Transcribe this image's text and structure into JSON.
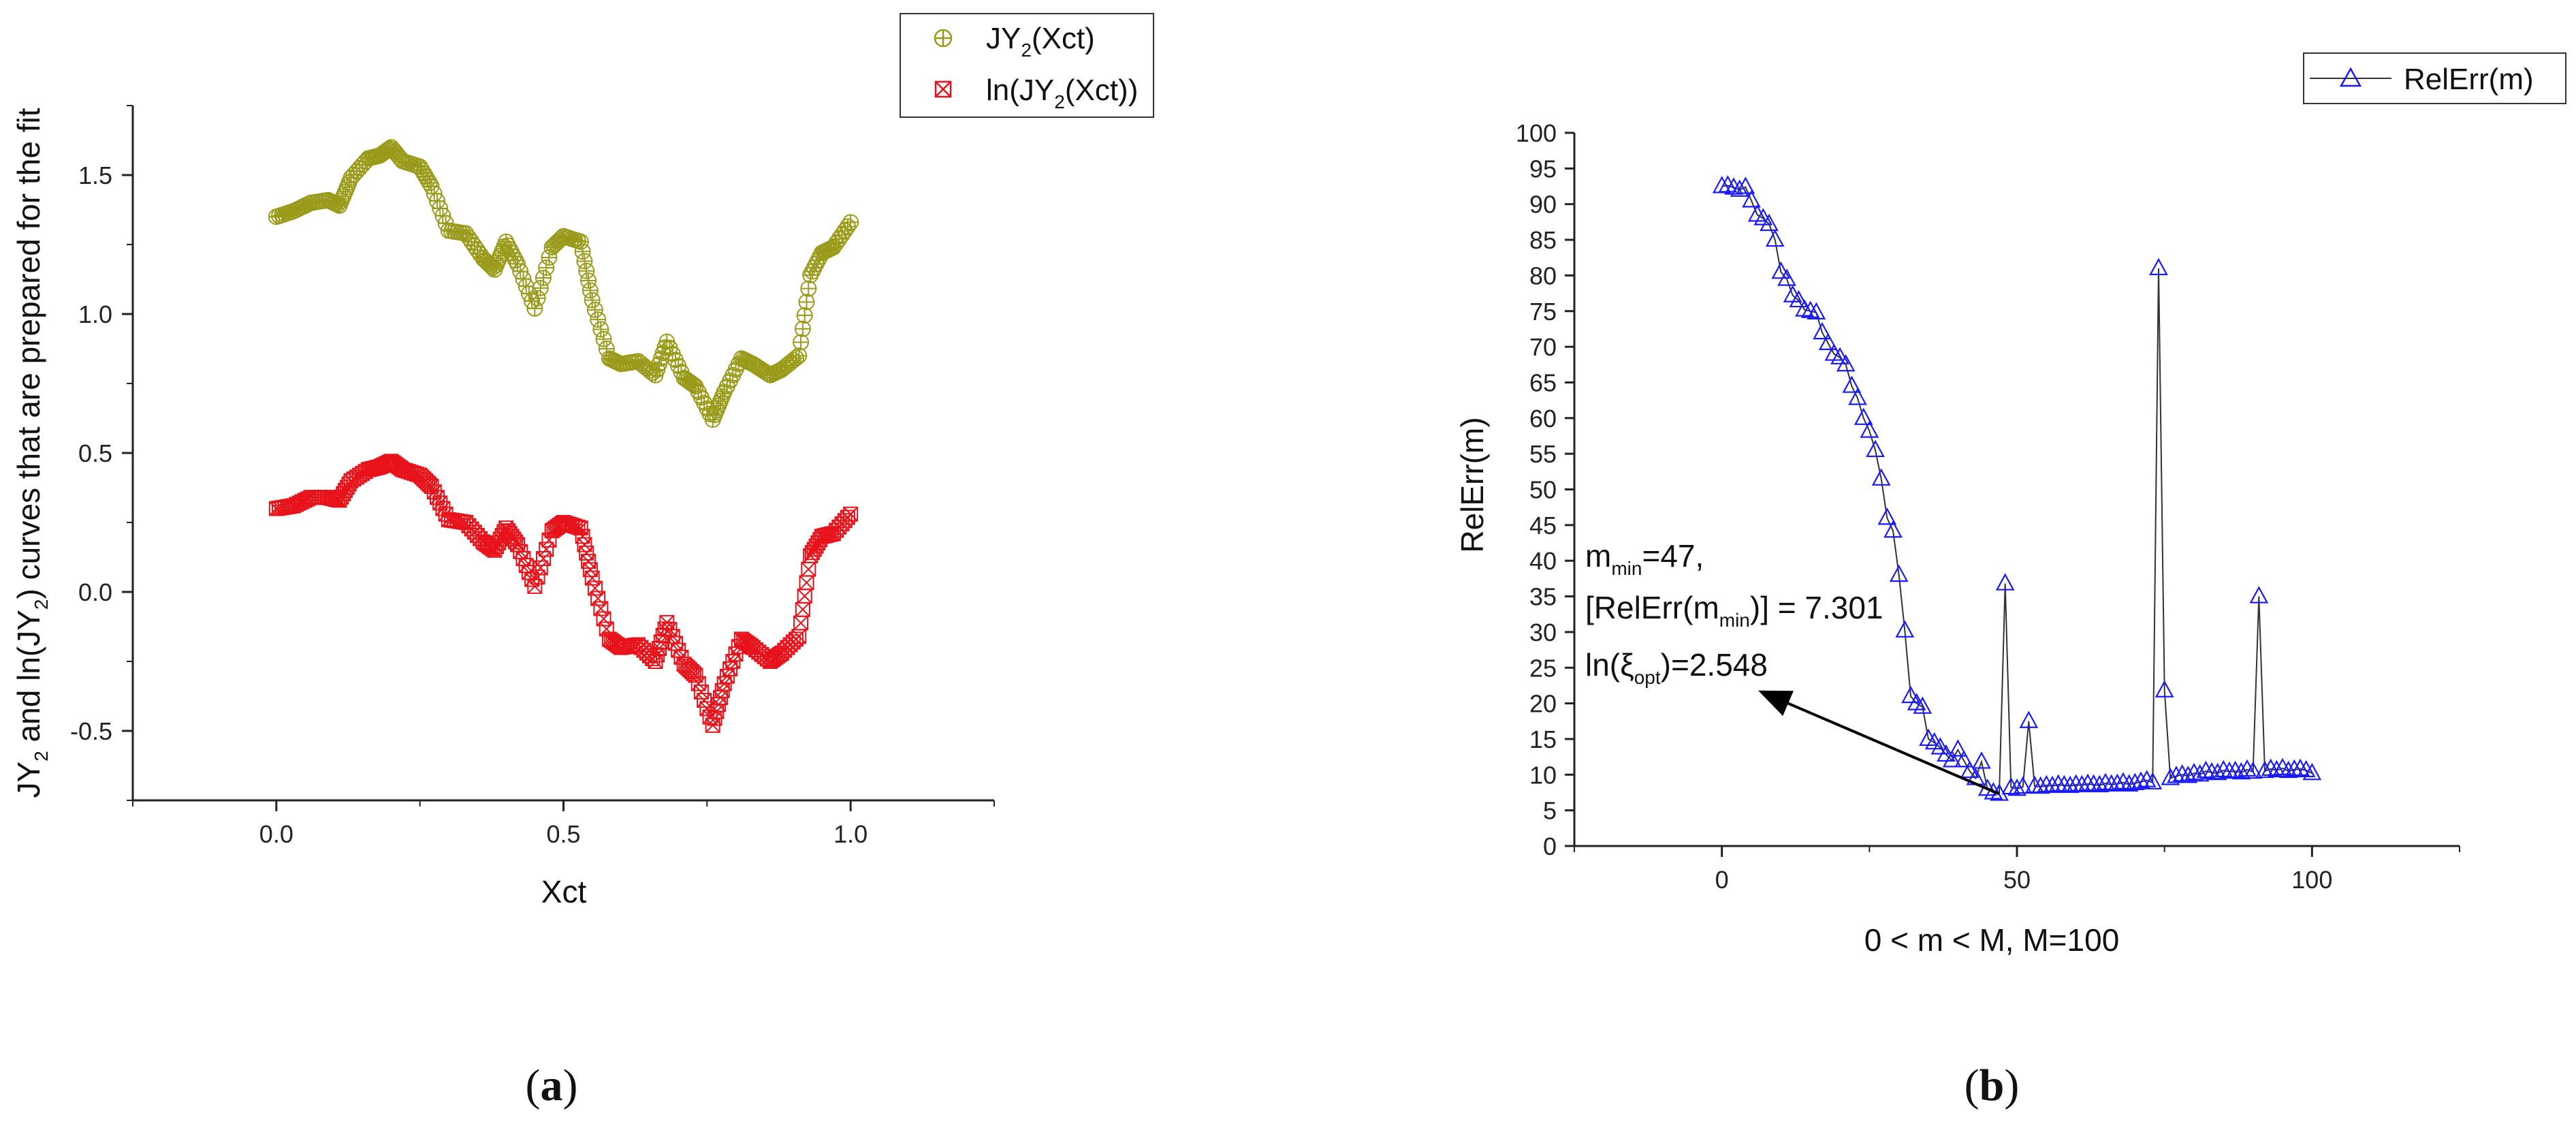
{
  "chart_data": [
    {
      "type": "scatter",
      "panel_label": "(a)",
      "panel_letter": "a",
      "xlabel": "Xct",
      "ylabel": "JY2 and ln(JY2) curves that are prepared for the fit",
      "ylabel_parts": {
        "p1": "JY",
        "s1": "2",
        "p2": " and ln(JY",
        "s2": "2",
        "p3": ") curves that are prepared for the fit"
      },
      "xlim": [
        -0.25,
        1.25
      ],
      "ylim": [
        -0.75,
        1.75
      ],
      "xticks": [
        0.0,
        0.5,
        1.0
      ],
      "xtick_labels": [
        "0.0",
        "0.5",
        "1.0"
      ],
      "yticks": [
        -0.5,
        0.0,
        0.5,
        1.0,
        1.5
      ],
      "ytick_labels": [
        "-0.5",
        "0.0",
        "0.5",
        "1.0",
        "1.5"
      ],
      "legend_position": "top-right",
      "series": [
        {
          "name": "JY2(Xct)",
          "legend_parts": {
            "p1": "JY",
            "s1": "2",
            "p2": "(Xct)"
          },
          "color": "#9a9a1a",
          "marker": "circle-plus",
          "x": [
            0.0,
            0.03,
            0.06,
            0.09,
            0.11,
            0.13,
            0.16,
            0.18,
            0.2,
            0.22,
            0.25,
            0.27,
            0.3,
            0.33,
            0.36,
            0.38,
            0.4,
            0.42,
            0.45,
            0.48,
            0.5,
            0.53,
            0.55,
            0.58,
            0.6,
            0.63,
            0.66,
            0.68,
            0.71,
            0.73,
            0.76,
            0.78,
            0.81,
            0.83,
            0.86,
            0.88,
            0.91,
            0.93,
            0.95,
            0.97,
            1.0
          ],
          "y": [
            1.35,
            1.37,
            1.4,
            1.41,
            1.39,
            1.49,
            1.56,
            1.57,
            1.6,
            1.55,
            1.53,
            1.46,
            1.3,
            1.29,
            1.2,
            1.16,
            1.26,
            1.18,
            1.02,
            1.24,
            1.28,
            1.26,
            1.05,
            0.84,
            0.82,
            0.83,
            0.78,
            0.9,
            0.77,
            0.74,
            0.62,
            0.72,
            0.84,
            0.82,
            0.78,
            0.8,
            0.85,
            1.14,
            1.22,
            1.24,
            1.33
          ]
        },
        {
          "name": "ln(JY2(Xct))",
          "legend_parts": {
            "p1": "ln(JY",
            "s1": "2",
            "p2": "(Xct))"
          },
          "color": "#e8121a",
          "marker": "square-x",
          "x": [
            0.0,
            0.03,
            0.06,
            0.09,
            0.11,
            0.13,
            0.16,
            0.18,
            0.2,
            0.22,
            0.25,
            0.27,
            0.3,
            0.33,
            0.36,
            0.38,
            0.4,
            0.42,
            0.45,
            0.48,
            0.5,
            0.53,
            0.55,
            0.58,
            0.6,
            0.63,
            0.66,
            0.68,
            0.71,
            0.73,
            0.76,
            0.78,
            0.81,
            0.83,
            0.86,
            0.88,
            0.91,
            0.93,
            0.95,
            0.97,
            1.0
          ],
          "y": [
            0.3,
            0.31,
            0.34,
            0.34,
            0.33,
            0.4,
            0.44,
            0.45,
            0.47,
            0.44,
            0.42,
            0.38,
            0.26,
            0.25,
            0.18,
            0.15,
            0.23,
            0.17,
            0.02,
            0.22,
            0.25,
            0.23,
            0.05,
            -0.17,
            -0.2,
            -0.19,
            -0.25,
            -0.11,
            -0.26,
            -0.3,
            -0.48,
            -0.33,
            -0.17,
            -0.2,
            -0.25,
            -0.22,
            -0.16,
            0.13,
            0.2,
            0.21,
            0.28
          ]
        }
      ]
    },
    {
      "type": "line",
      "panel_label": "(b)",
      "panel_letter": "b",
      "xlabel": "0 < m < M, M=100",
      "ylabel": "RelErr(m)",
      "xlim": [
        -25,
        125
      ],
      "ylim": [
        0,
        100
      ],
      "xticks": [
        0,
        50,
        100
      ],
      "xtick_labels": [
        "0",
        "50",
        "100"
      ],
      "yticks": [
        0,
        5,
        10,
        15,
        20,
        25,
        30,
        35,
        40,
        45,
        50,
        55,
        60,
        65,
        70,
        75,
        80,
        85,
        90,
        95,
        100
      ],
      "ytick_labels": [
        "0",
        "5",
        "10",
        "15",
        "20",
        "25",
        "30",
        "35",
        "40",
        "45",
        "50",
        "55",
        "60",
        "65",
        "70",
        "75",
        "80",
        "85",
        "90",
        "95",
        "100"
      ],
      "legend_position": "top-right",
      "series": [
        {
          "name": "RelErr(m)",
          "color": "#1a1aff",
          "line_color": "#333333",
          "marker": "triangle-up-open",
          "x": [
            0,
            1,
            2,
            3,
            4,
            5,
            6,
            7,
            8,
            9,
            10,
            11,
            12,
            13,
            14,
            15,
            16,
            17,
            18,
            19,
            20,
            21,
            22,
            23,
            24,
            25,
            26,
            27,
            28,
            29,
            30,
            31,
            32,
            33,
            34,
            35,
            36,
            37,
            38,
            39,
            40,
            41,
            42,
            43,
            44,
            45,
            46,
            47,
            48,
            49,
            50,
            51,
            52,
            53,
            54,
            55,
            56,
            57,
            58,
            59,
            60,
            61,
            62,
            63,
            64,
            65,
            66,
            67,
            68,
            69,
            70,
            71,
            72,
            73,
            74,
            75,
            76,
            77,
            78,
            79,
            80,
            81,
            82,
            83,
            84,
            85,
            86,
            87,
            88,
            89,
            90,
            91,
            92,
            93,
            94,
            95,
            96,
            97,
            98,
            99,
            100
          ],
          "y": [
            92.5,
            92.6,
            92.3,
            92.0,
            92.4,
            90.5,
            88.5,
            88.0,
            87.2,
            85.0,
            80.5,
            79.5,
            77.2,
            76.5,
            75.2,
            75.0,
            74.8,
            72.0,
            70.5,
            69.0,
            68.5,
            67.5,
            64.5,
            62.8,
            60.0,
            58.2,
            55.5,
            51.5,
            46.0,
            44.2,
            38.0,
            30.2,
            21.0,
            20.0,
            19.5,
            15.0,
            14.5,
            13.8,
            12.8,
            12.0,
            13.5,
            12.0,
            10.5,
            9.5,
            11.8,
            8.0,
            7.5,
            7.3,
            36.8,
            8.2,
            8.0,
            8.3,
            17.5,
            8.4,
            8.3,
            8.5,
            8.4,
            8.6,
            8.5,
            8.4,
            8.6,
            8.5,
            8.7,
            8.6,
            8.5,
            8.8,
            8.6,
            8.7,
            8.9,
            8.6,
            8.8,
            9.0,
            9.2,
            8.9,
            81.0,
            21.8,
            9.5,
            9.8,
            10.0,
            9.8,
            10.2,
            10.0,
            10.5,
            10.3,
            10.2,
            10.6,
            10.4,
            10.5,
            10.3,
            10.7,
            10.4,
            35.0,
            10.5,
            10.8,
            10.6,
            10.9,
            10.5,
            10.7,
            10.8,
            10.6,
            10.2
          ]
        }
      ],
      "annotation": {
        "line1_parts": {
          "p1": "m",
          "s1": "min",
          "p2": "=47,"
        },
        "line2_parts": {
          "p1": "[RelErr(m",
          "s1": "min",
          "p2": ")] = 7.301"
        },
        "line3_parts": {
          "p1": "ln(ξ",
          "s1": "opt",
          "p2": ")=2.548"
        },
        "arrow_from": [
          47,
          7.3
        ],
        "arrow_to": [
          7,
          21.5
        ]
      }
    }
  ]
}
